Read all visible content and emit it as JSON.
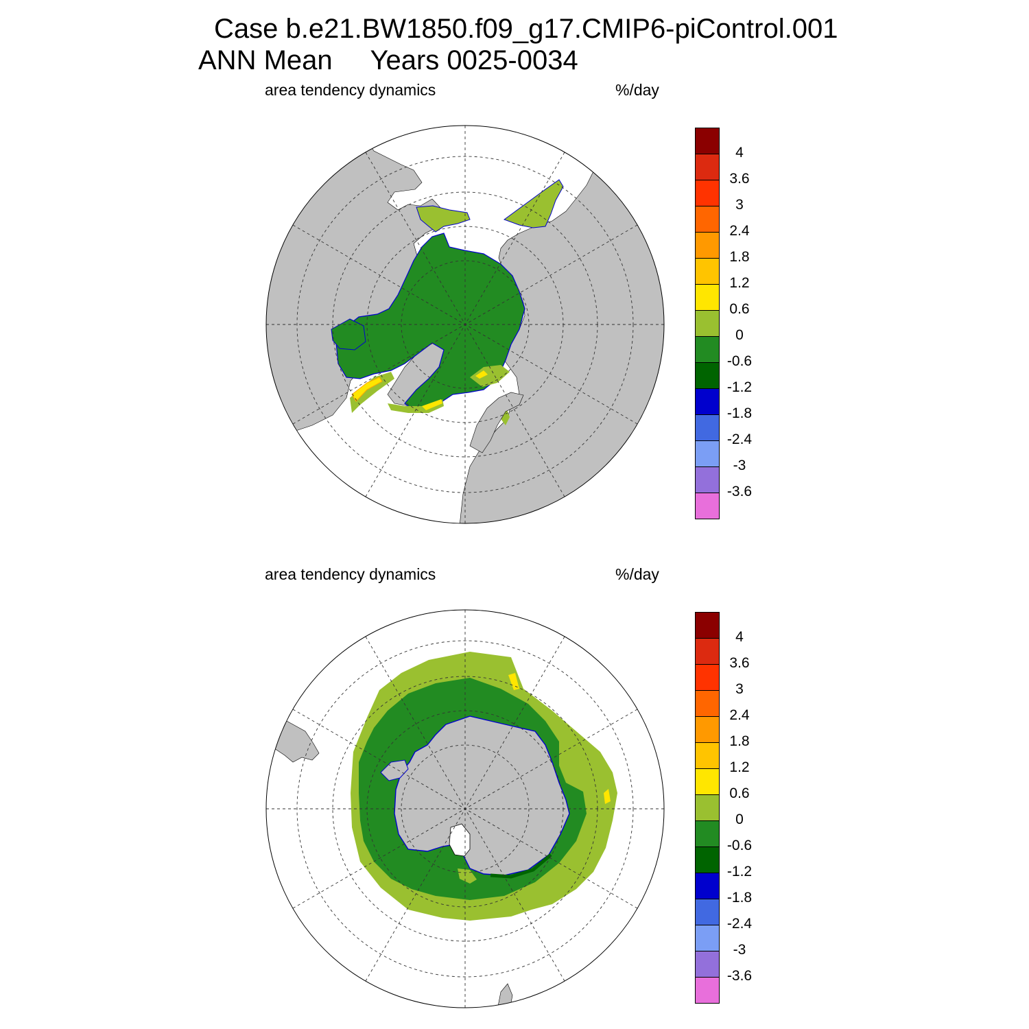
{
  "title": {
    "line1": "Case b.e21.BW1850.f09_g17.CMIP6-piControl.001",
    "line2": "ANN Mean     Years 0025-0034"
  },
  "panels": [
    {
      "hemisphere": "north",
      "variable": "area tendency dynamics",
      "units": "%/day"
    },
    {
      "hemisphere": "south",
      "variable": "area tendency dynamics",
      "units": "%/day"
    }
  ],
  "colorbar": {
    "colors": [
      "#8B0000",
      "#DC2A10",
      "#FF3300",
      "#FF6600",
      "#FF9900",
      "#FFC400",
      "#FFE600",
      "#9AC030",
      "#228B22",
      "#006400",
      "#0000CD",
      "#4169E1",
      "#7B9EF5",
      "#9370DB",
      "#E86FDB"
    ],
    "tick_labels": [
      "4",
      "3.6",
      "3",
      "2.4",
      "1.8",
      "1.2",
      "0.6",
      "0",
      "-0.6",
      "-1.2",
      "-1.8",
      "-2.4",
      "-3",
      "-3.6"
    ]
  },
  "map_colors": {
    "land": "#C0C0C0",
    "ocean": "#FFFFFF",
    "ice_main": "#228B22",
    "ice_edge": "#9AC030",
    "ice_dark": "#006400",
    "ice_positive": "#FFE600",
    "coast_negative": "#0000CD"
  }
}
